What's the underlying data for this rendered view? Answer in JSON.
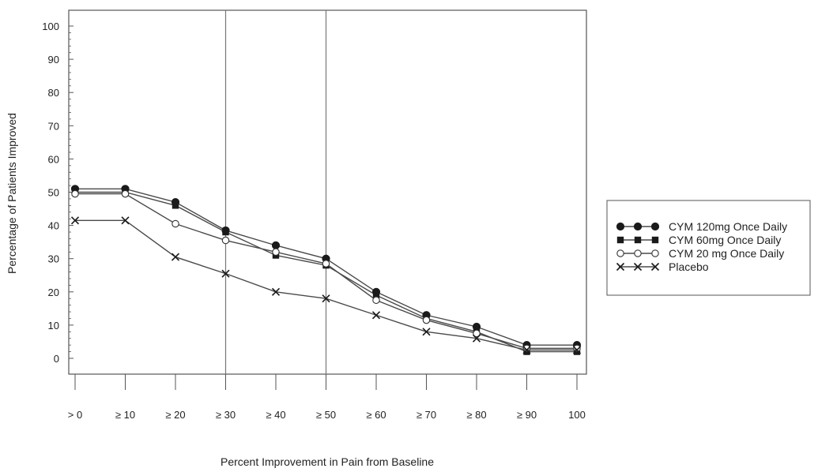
{
  "chart_data": {
    "type": "line",
    "title": "",
    "xlabel": "Percent Improvement in Pain from Baseline",
    "ylabel": "Percentage of Patients Improved",
    "categories": [
      "> 0",
      "≥ 10",
      "≥ 20",
      "≥ 30",
      "≥ 40",
      "≥ 50",
      "≥ 60",
      "≥ 70",
      "≥ 80",
      "≥ 90",
      "100"
    ],
    "ylim": [
      0,
      100
    ],
    "yticks": [
      0,
      10,
      20,
      30,
      40,
      50,
      60,
      70,
      80,
      90,
      100
    ],
    "reference_lines_at": [
      "≥ 30",
      "≥ 50"
    ],
    "grid": false,
    "legend_position": "right",
    "series": [
      {
        "name": "CYM 120mg Once Daily",
        "marker": "filled-circle",
        "values": [
          51,
          51,
          47,
          38.5,
          34,
          30,
          20,
          13,
          9.5,
          4,
          4
        ]
      },
      {
        "name": "CYM 60mg Once Daily",
        "marker": "filled-square",
        "values": [
          50,
          50,
          46,
          38,
          31,
          28,
          19,
          12,
          8,
          2,
          2
        ]
      },
      {
        "name": "CYM 20 mg Once Daily",
        "marker": "open-circle",
        "values": [
          49.5,
          49.5,
          40.5,
          35.5,
          32,
          28.5,
          17.5,
          11.5,
          7.5,
          3,
          3
        ]
      },
      {
        "name": "Placebo",
        "marker": "x",
        "values": [
          41.5,
          41.5,
          30.5,
          25.5,
          20,
          18,
          13,
          8,
          6,
          2.5,
          2.5
        ]
      }
    ],
    "colors": {
      "line": "#4a4a4a",
      "marker": "#1a1a1a",
      "frame": "#555555"
    }
  }
}
